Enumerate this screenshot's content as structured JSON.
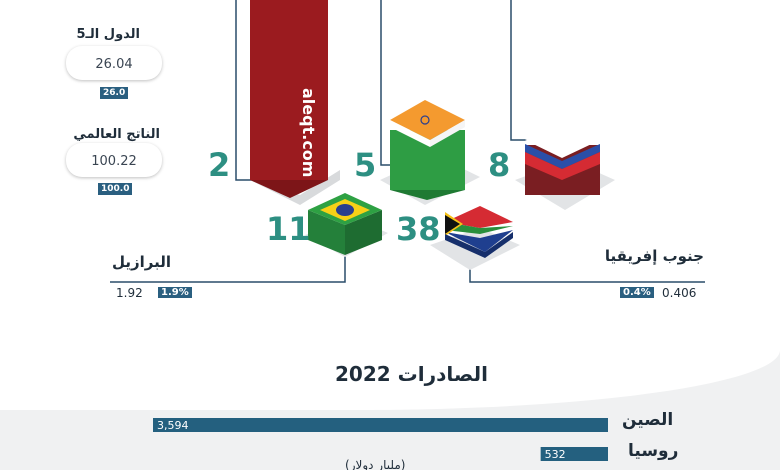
{
  "sidebar": {
    "group": {
      "title": "الدول الـ5",
      "value": "26.04",
      "tag": "26.0"
    },
    "world": {
      "title": "الناتج العالمي",
      "value": "100.22",
      "tag": "100.0"
    }
  },
  "watermark": "aleqt.com",
  "ranks": {
    "a": "2",
    "india": "5",
    "russia": "8",
    "brazil": "11",
    "south_africa": "38"
  },
  "callouts": {
    "brazil": {
      "name": "البرازيل",
      "value": "1.92",
      "pct": "1.9%"
    },
    "south_africa": {
      "name": "جنوب إفريقيا",
      "value": "0.406",
      "pct": "0.4%"
    }
  },
  "colors": {
    "accent_teal": "#2d8f82",
    "bar_blue": "#24607f",
    "maroon": "#9b1b1f",
    "navy": "#2a5f80"
  },
  "chart_data": {
    "type": "bar",
    "title": "الصادرات 2022",
    "unit": "(مليار دولار)",
    "categories": [
      "الصين",
      "روسيا"
    ],
    "values": [
      3594,
      532
    ],
    "value_labels": [
      "3,594",
      "532"
    ],
    "orientation": "horizontal",
    "xlim": [
      0,
      3594
    ],
    "grid": false
  }
}
